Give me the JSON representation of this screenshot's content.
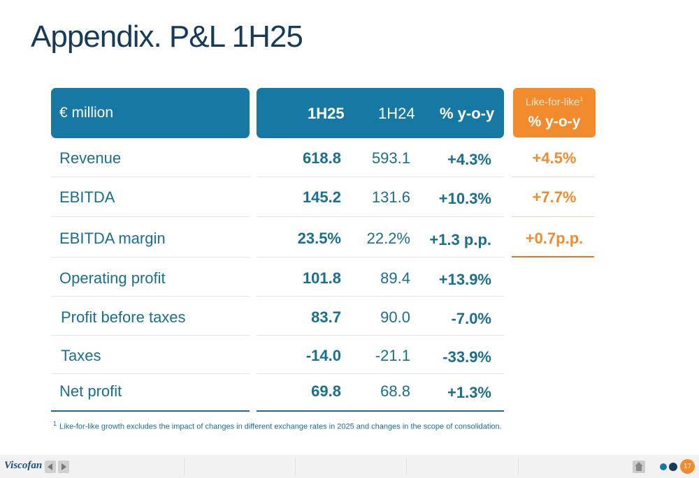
{
  "title": "Appendix. P&L 1H25",
  "table": {
    "unit_label": "€ million",
    "col_1h25": "1H25",
    "col_1h24": "1H24",
    "col_yoy": "% y-o-y",
    "lfl_header_line1": "Like-for-like",
    "lfl_header_sup": "1",
    "lfl_header_line2": "% y-o-y",
    "rows": [
      {
        "label": "Revenue",
        "v1h25": "618.8",
        "v1h24": "593.1",
        "yoy": "+4.3%",
        "lfl": "+4.5%"
      },
      {
        "label": "EBITDA",
        "v1h25": "145.2",
        "v1h24": "131.6",
        "yoy": "+10.3%",
        "lfl": "+7.7%"
      },
      {
        "label": "EBITDA margin",
        "v1h25": "23.5%",
        "v1h24": "22.2%",
        "yoy": "+1.3 p.p.",
        "lfl": "+0.7p.p."
      },
      {
        "label": "Operating profit",
        "v1h25": "101.8",
        "v1h24": "89.4",
        "yoy": "+13.9%",
        "lfl": ""
      },
      {
        "label": "Profit before taxes",
        "v1h25": "83.7",
        "v1h24": "90.0",
        "yoy": "-7.0%",
        "lfl": ""
      },
      {
        "label": "Taxes",
        "v1h25": "-14.0",
        "v1h24": "-21.1",
        "yoy": "-33.9%",
        "lfl": ""
      },
      {
        "label": "Net profit",
        "v1h25": "69.8",
        "v1h24": "68.8",
        "yoy": "+1.3%",
        "lfl": ""
      }
    ]
  },
  "footnote_marker": "1",
  "footnote": "Like-for-like growth excludes the impact of changes in different exchange rates in 2025 and changes in the scope of consolidation.",
  "footer": {
    "logo_text": "Viscofan",
    "page_number": "17"
  },
  "colors": {
    "primary": "#1678a3",
    "accent": "#f28a2e",
    "title": "#163a58"
  },
  "icons": [
    "prev-arrow-icon",
    "next-arrow-icon",
    "home-icon"
  ]
}
